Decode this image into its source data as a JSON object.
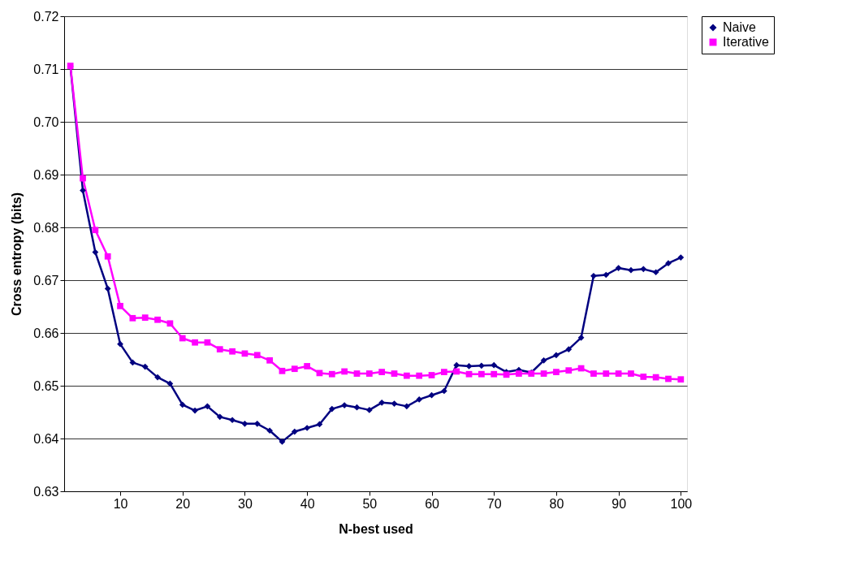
{
  "chart_data": {
    "type": "line",
    "xlabel": "N-best used",
    "ylabel": "Cross entropy (bits)",
    "x": [
      2,
      4,
      6,
      8,
      10,
      12,
      14,
      16,
      18,
      20,
      22,
      24,
      26,
      28,
      30,
      32,
      34,
      36,
      38,
      40,
      42,
      44,
      46,
      48,
      50,
      52,
      54,
      56,
      58,
      60,
      62,
      64,
      66,
      68,
      70,
      72,
      74,
      76,
      78,
      80,
      82,
      84,
      86,
      88,
      90,
      92,
      94,
      96,
      98,
      100
    ],
    "series": [
      {
        "name": "Naive",
        "color": "#000080",
        "marker": "diamond",
        "values": [
          0.7105,
          0.687,
          0.6753,
          0.6684,
          0.6579,
          0.6544,
          0.6536,
          0.6516,
          0.6504,
          0.6464,
          0.6453,
          0.6461,
          0.6441,
          0.6435,
          0.6428,
          0.6428,
          0.6415,
          0.6394,
          0.6413,
          0.642,
          0.6427,
          0.6456,
          0.6463,
          0.6459,
          0.6454,
          0.6468,
          0.6466,
          0.6461,
          0.6474,
          0.6482,
          0.649,
          0.6539,
          0.6537,
          0.6538,
          0.6539,
          0.6526,
          0.653,
          0.6525,
          0.6548,
          0.6558,
          0.6569,
          0.6591,
          0.6708,
          0.671,
          0.6723,
          0.6719,
          0.6721,
          0.6715,
          0.6732,
          0.6743
        ]
      },
      {
        "name": "Iterative",
        "color": "#ff00ff",
        "marker": "square",
        "values": [
          0.7106,
          0.6893,
          0.6795,
          0.6745,
          0.6651,
          0.6628,
          0.6629,
          0.6625,
          0.6618,
          0.659,
          0.6582,
          0.6582,
          0.6569,
          0.6565,
          0.6561,
          0.6558,
          0.6548,
          0.6528,
          0.6532,
          0.6537,
          0.6524,
          0.6522,
          0.6527,
          0.6523,
          0.6523,
          0.6526,
          0.6523,
          0.6519,
          0.6519,
          0.652,
          0.6526,
          0.6527,
          0.6522,
          0.6522,
          0.6522,
          0.6521,
          0.6523,
          0.6523,
          0.6523,
          0.6526,
          0.6529,
          0.6533,
          0.6523,
          0.6523,
          0.6523,
          0.6523,
          0.6517,
          0.6516,
          0.6513,
          0.6512
        ]
      }
    ],
    "xlim": [
      1,
      101
    ],
    "xticks": [
      10,
      20,
      30,
      40,
      50,
      60,
      70,
      80,
      90,
      100
    ],
    "ylim": [
      0.63,
      0.72
    ],
    "yticks": [
      0.63,
      0.64,
      0.65,
      0.66,
      0.67,
      0.68,
      0.69,
      {
        "value": 0.7,
        "label": "0.70"
      },
      0.71,
      0.72
    ],
    "grid": "y",
    "legend": "right",
    "line_style": "solid"
  }
}
